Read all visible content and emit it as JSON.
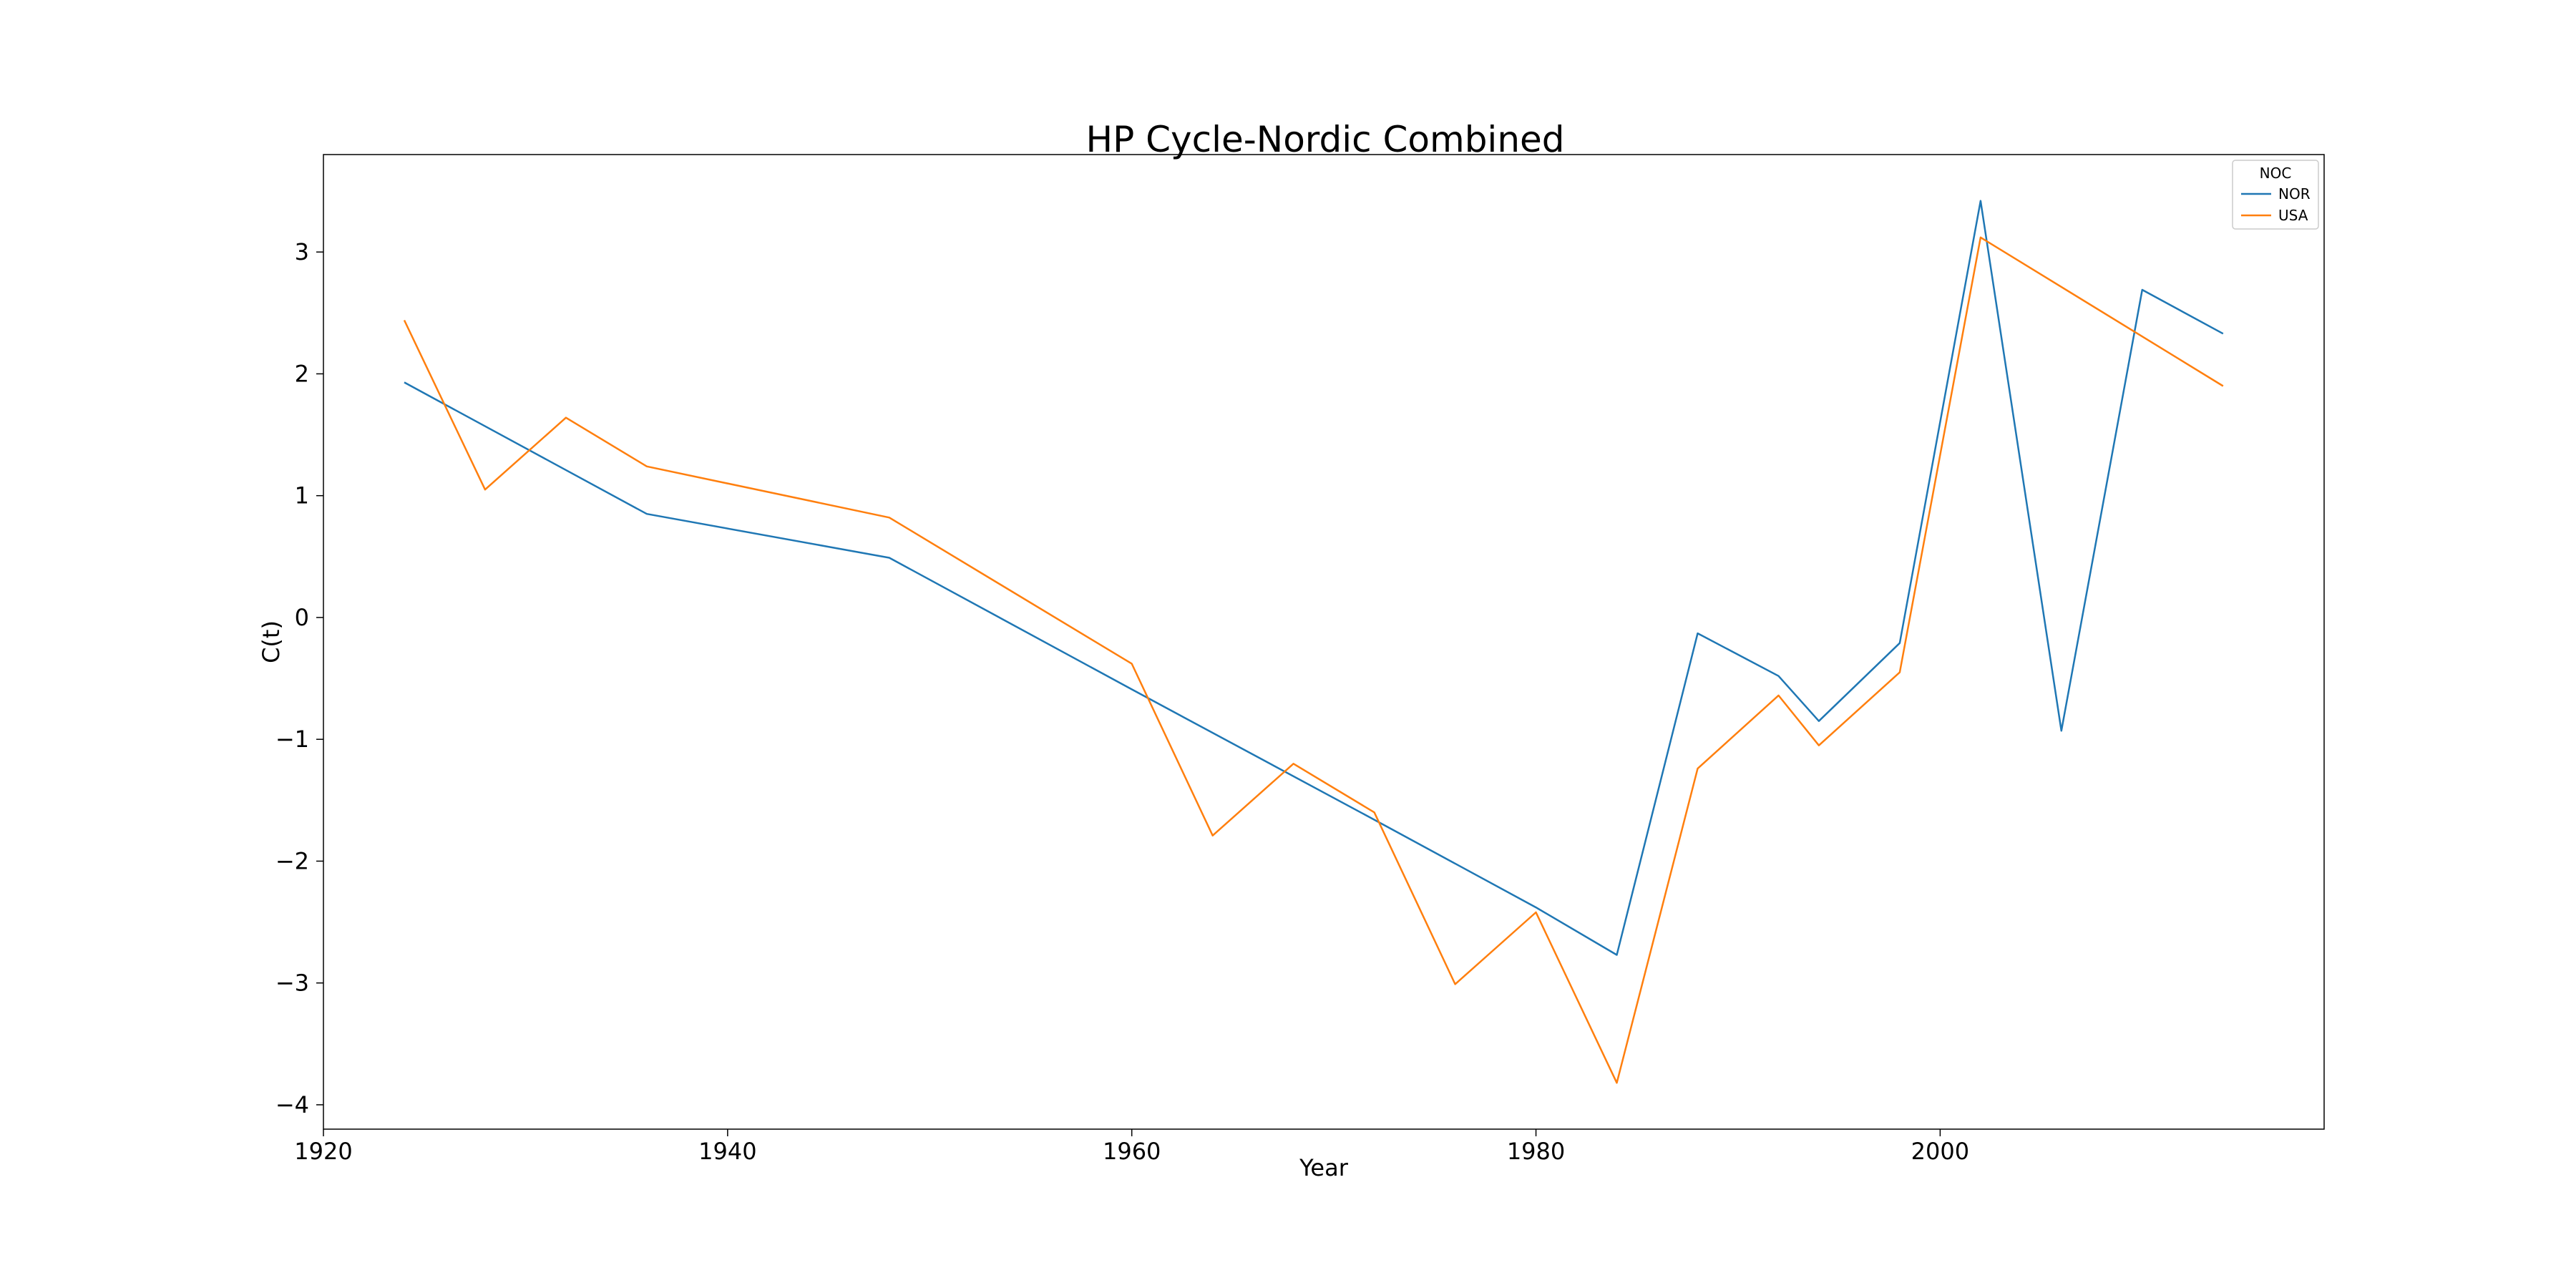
{
  "chart_data": {
    "type": "line",
    "title": "HP Cycle-Nordic Combined",
    "xlabel": "Year",
    "ylabel": "C(t)",
    "xlim": [
      1920,
      2019
    ],
    "ylim": [
      -4.2,
      3.8
    ],
    "x_ticks": [
      1920,
      1940,
      1960,
      1980,
      2000
    ],
    "y_ticks": [
      -4,
      -3,
      -2,
      -1,
      0,
      1,
      2,
      3
    ],
    "x_tick_labels": [
      "1920",
      "1940",
      "1960",
      "1980",
      "2000"
    ],
    "y_tick_labels": [
      "−4",
      "−3",
      "−2",
      "−1",
      "0",
      "1",
      "2",
      "3"
    ],
    "grid": false,
    "legend": {
      "title": "NOC",
      "placement": "top-right"
    },
    "series": [
      {
        "name": "NOR",
        "color": "#1f77b4",
        "x": [
          1924,
          1936,
          1948,
          1960,
          1972,
          1980,
          1984,
          1988,
          1992,
          1994,
          1998,
          2002,
          2006,
          2010,
          2014
        ],
        "y": [
          1.93,
          0.85,
          0.49,
          -0.59,
          -1.66,
          -2.38,
          -2.77,
          -0.13,
          -0.48,
          -0.85,
          -0.21,
          3.42,
          -0.93,
          2.69,
          2.33
        ]
      },
      {
        "name": "USA",
        "color": "#ff7f0e",
        "x": [
          1924,
          1928,
          1932,
          1936,
          1948,
          1960,
          1964,
          1968,
          1972,
          1976,
          1980,
          1984,
          1988,
          1992,
          1994,
          1998,
          2002,
          2014
        ],
        "y": [
          2.44,
          1.05,
          1.64,
          1.24,
          0.82,
          -0.38,
          -1.79,
          -1.2,
          -1.6,
          -3.01,
          -2.42,
          -3.82,
          -1.24,
          -0.64,
          -1.05,
          -0.45,
          3.12,
          1.9
        ]
      }
    ]
  }
}
